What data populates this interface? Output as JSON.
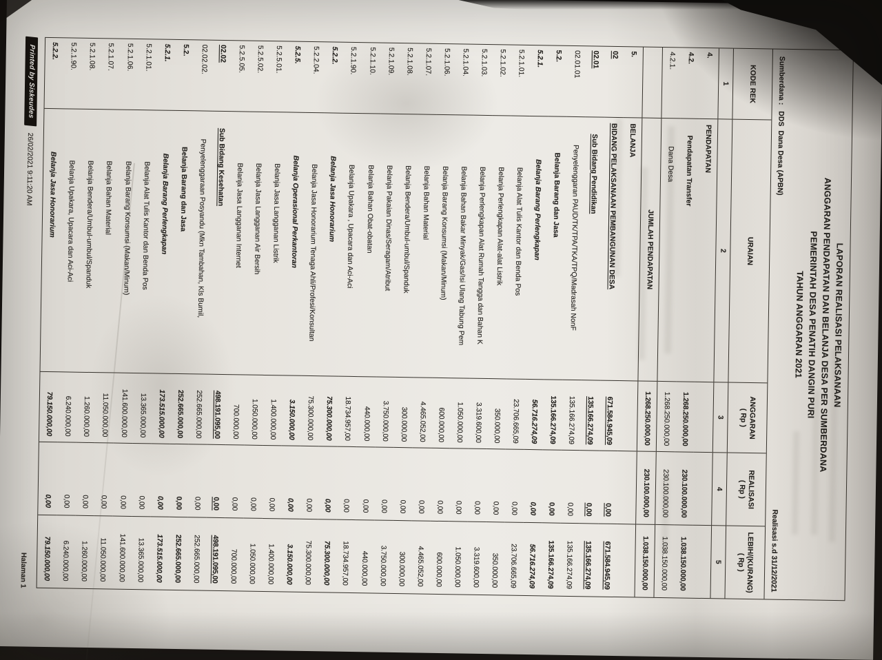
{
  "colors": {
    "background": "#141110",
    "paper": "#eae7e1",
    "ink": "#22201d",
    "border": "#35312b",
    "badge_bg": "#17130f",
    "badge_text": "#e9e6e1"
  },
  "title_lines": [
    "LAPORAN REALISASI PELAKSANAAN",
    "ANGGARAN PENDAPATAN DAN BELANJA DESA PER SUMBERDANA",
    "PEMERINTAH DESA PENATIH DANGIN PURI",
    "TAHUN ANGGARAN 2021"
  ],
  "meta": {
    "sumberdana": "Sumberdana :   DDS  Dana Desa (APBN)",
    "realisasi_periode": "Realisasi s.d 31/12/2021"
  },
  "table": {
    "header": {
      "kode_rek": "KODE REK",
      "uraian": "URAIAN",
      "anggaran": "ANGGARAN",
      "realisasi": "REALISASI",
      "lebih_kurang": "LEBIH/(KURANG)",
      "rp": "( Rp )",
      "nums": [
        "1",
        "2",
        "3",
        "4",
        "5"
      ]
    },
    "rows": [
      {
        "code": "4.",
        "uraian": "PENDAPATAN",
        "anggaran": "",
        "realisasi": "",
        "lebih": "",
        "b": 1,
        "level": 1
      },
      {
        "code": "4.2.",
        "uraian": "Pendapatan Transfer",
        "anggaran": "1.268.250.000,00",
        "realisasi": "230.100.000,00",
        "lebih": "1.038.150.000,00",
        "b": 1,
        "level": 2
      },
      {
        "code": "4.2.1.",
        "uraian": "Dana Desa",
        "anggaran": "1.268.250.000,00",
        "realisasi": "230.100.000,00",
        "lebih": "1.038.150.000,00",
        "level": 3
      },
      {
        "code": "",
        "uraian": "JUMLAH PENDAPATAN",
        "anggaran": "1.268.250.000,00",
        "realisasi": "230.100.000,00",
        "lebih": "1.038.150.000,00",
        "b": 1,
        "box": 1,
        "center": 1
      },
      {
        "code": "5.",
        "uraian": "BELANJA",
        "anggaran": "",
        "realisasi": "",
        "lebih": "",
        "b": 1,
        "level": 1
      },
      {
        "code": "02",
        "uraian": "BIDANG PELAKSANAAN PEMBANGUNAN DESA",
        "anggaran": "671.584.945,09",
        "realisasi": "0,00",
        "lebih": "671.584.945,09",
        "b": 1,
        "u": 1,
        "level": 1
      },
      {
        "code": "02.01",
        "uraian": "Sub Bidang Pendidikan",
        "anggaran": "135.166.274,09",
        "realisasi": "0,00",
        "lebih": "135.166.274,09",
        "b": 1,
        "u": 1,
        "level": 2
      },
      {
        "code": "02.01.01",
        "uraian": "Penyelenggaran PAUD/TK/TPA/TKA/TPQ/Madrasah NonF",
        "anggaran": "135.166.274,09",
        "realisasi": "0,00",
        "lebih": "135.166.274,09",
        "level": 3
      },
      {
        "code": "5.2.",
        "uraian": "Belanja Barang dan Jasa",
        "anggaran": "135.166.274,09",
        "realisasi": "0,00",
        "lebih": "135.166.274,09",
        "b": 1,
        "level": 4
      },
      {
        "code": "5.2.1.",
        "uraian": "Belanja Barang Perlengkapan",
        "anggaran": "56.716.274,09",
        "realisasi": "0,00",
        "lebih": "56.716.274,09",
        "b": 1,
        "i": 1,
        "level": 5
      },
      {
        "code": "5.2.1.01.",
        "uraian": "Belanja Alat Tulis Kantor dan Benda Pos",
        "anggaran": "23.706.665,09",
        "realisasi": "0,00",
        "lebih": "23.706.665,09",
        "level": 6
      },
      {
        "code": "5.2.1.02.",
        "uraian": "Belanja Perlengkapan Alat-alat Listrik",
        "anggaran": "350.000,00",
        "realisasi": "0,00",
        "lebih": "350.000,00",
        "level": 6
      },
      {
        "code": "5.2.1.03.",
        "uraian": "Belanja Perlengkapan Alat Rumah Tangga dan Bahan K",
        "anggaran": "3.319.600,00",
        "realisasi": "0,00",
        "lebih": "3.319.600,00",
        "level": 6
      },
      {
        "code": "5.2.1.04.",
        "uraian": "Belanja Bahan Bakar Minyak/Gas/Isi Ulang Tabung Pem",
        "anggaran": "1.050.000,00",
        "realisasi": "0,00",
        "lebih": "1.050.000,00",
        "level": 6
      },
      {
        "code": "5.2.1.06.",
        "uraian": "Belanja Barang Konsumsi (Makan/Minum)",
        "anggaran": "600.000,00",
        "realisasi": "0,00",
        "lebih": "600.000,00",
        "level": 6
      },
      {
        "code": "5.2.1.07.",
        "uraian": "Belanja Bahan Material",
        "anggaran": "4.465.052,00",
        "realisasi": "0,00",
        "lebih": "4.465.052,00",
        "level": 6
      },
      {
        "code": "5.2.1.08.",
        "uraian": "Belanja Bendera/Umbul-umbul/Spanduk",
        "anggaran": "300.000,00",
        "realisasi": "0,00",
        "lebih": "300.000,00",
        "level": 6
      },
      {
        "code": "5.2.1.09.",
        "uraian": "Belanja Pakaian Dinas/Seragam/Atribut",
        "anggaran": "3.750.000,00",
        "realisasi": "0,00",
        "lebih": "3.750.000,00",
        "level": 6
      },
      {
        "code": "5.2.1.10.",
        "uraian": "Belanja Bahan Obat-obatan",
        "anggaran": "440.000,00",
        "realisasi": "0,00",
        "lebih": "440.000,00",
        "level": 6
      },
      {
        "code": "5.2.1.90.",
        "uraian": "Belanja Upakara , Upacara dan Aci-Aci",
        "anggaran": "18.734.957,00",
        "realisasi": "0,00",
        "lebih": "18.734.957,00",
        "level": 6
      },
      {
        "code": "5.2.2.",
        "uraian": "Belanja Jasa Honorarium",
        "anggaran": "75.300.000,00",
        "realisasi": "0,00",
        "lebih": "75.300.000,00",
        "b": 1,
        "i": 1,
        "level": 5
      },
      {
        "code": "5.2.2.04.",
        "uraian": "Belanja Jasa Honorarium Tenaga Ahli/Profesi/Konsultan",
        "anggaran": "75.300.000,00",
        "realisasi": "0,00",
        "lebih": "75.300.000,00",
        "level": 6
      },
      {
        "code": "5.2.5.",
        "uraian": "Belanja Operasional Perkantoran",
        "anggaran": "3.150.000,00",
        "realisasi": "0,00",
        "lebih": "3.150.000,00",
        "b": 1,
        "i": 1,
        "level": 5
      },
      {
        "code": "5.2.5.01.",
        "uraian": "Belanja Jasa Langganan Listrik",
        "anggaran": "1.400.000,00",
        "realisasi": "0,00",
        "lebih": "1.400.000,00",
        "level": 6
      },
      {
        "code": "5.2.5.02.",
        "uraian": "Belanja Jasa Langganan Air Bersih",
        "anggaran": "1.050.000,00",
        "realisasi": "0,00",
        "lebih": "1.050.000,00",
        "level": 6
      },
      {
        "code": "5.2.5.05.",
        "uraian": "Belanja Jasa Langganan Internet",
        "anggaran": "700.000,00",
        "realisasi": "0,00",
        "lebih": "700.000,00",
        "level": 6
      },
      {
        "code": "02.02",
        "uraian": "Sub Bidang Kesehatan",
        "anggaran": "498.191.095,00",
        "realisasi": "0,00",
        "lebih": "498.191.095,00",
        "b": 1,
        "u": 1,
        "level": 2
      },
      {
        "code": "02.02.02.",
        "uraian": "Penyelenggaraan Posyandu (Mkn Tambahan, Kls Bumil,",
        "anggaran": "252.665.000,00",
        "realisasi": "0,00",
        "lebih": "252.665.000,00",
        "level": 3
      },
      {
        "code": "5.2.",
        "uraian": "Belanja Barang dan Jasa",
        "anggaran": "252.665.000,00",
        "realisasi": "0,00",
        "lebih": "252.665.000,00",
        "b": 1,
        "level": 4
      },
      {
        "code": "5.2.1.",
        "uraian": "Belanja Barang Perlengkapan",
        "anggaran": "173.515.000,00",
        "realisasi": "0,00",
        "lebih": "173.515.000,00",
        "b": 1,
        "i": 1,
        "level": 5
      },
      {
        "code": "5.2.1.01.",
        "uraian": "Belanja Alat Tulis Kantor dan Benda Pos",
        "anggaran": "13.365.000,00",
        "realisasi": "0,00",
        "lebih": "13.365.000,00",
        "level": 6
      },
      {
        "code": "5.2.1.06.",
        "uraian": "Belanja Barang Konsumsi (Makan/Minum)",
        "anggaran": "141.600.000,00",
        "realisasi": "0,00",
        "lebih": "141.600.000,00",
        "level": 6
      },
      {
        "code": "5.2.1.07.",
        "uraian": "Belanja Bahan Material",
        "anggaran": "11.050.000,00",
        "realisasi": "0,00",
        "lebih": "11.050.000,00",
        "level": 6
      },
      {
        "code": "5.2.1.08.",
        "uraian": "Belanja Bendera/Umbul-umbul/Spanduk",
        "anggaran": "1.260.000,00",
        "realisasi": "0,00",
        "lebih": "1.260.000,00",
        "level": 6
      },
      {
        "code": "5.2.1.90.",
        "uraian": "Belanja Upakara, Upacara dan Aci-Aci",
        "anggaran": "6.240.000,00",
        "realisasi": "0,00",
        "lebih": "6.240.000,00",
        "level": 6
      },
      {
        "code": "5.2.2.",
        "uraian": "Belanja Jasa Honorarium",
        "anggaran": "79.150.000,00",
        "realisasi": "0,00",
        "lebih": "79.150.000,00",
        "b": 1,
        "i": 1,
        "level": 5
      }
    ]
  },
  "footer": {
    "printed_by": "Printed by Siskeudes",
    "timestamp": "26/02/2021 9:11:20 AM",
    "halaman": "Halaman 1"
  }
}
